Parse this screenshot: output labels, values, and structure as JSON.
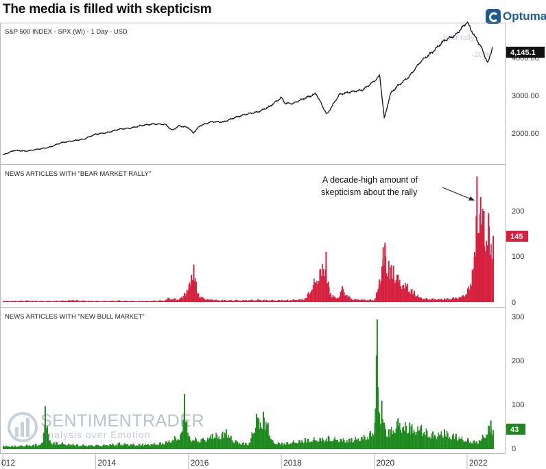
{
  "title": "The media is filled with skepticism",
  "brand": {
    "name": "Optuma",
    "logo_icon": "optuma-logo-icon"
  },
  "watermark": {
    "name": "SENTIMENTRADER",
    "tagline": "Analysis over Emotion",
    "icon": "sentimentrader-logo-icon"
  },
  "colors": {
    "price": "#111111",
    "bear": "#d6203f",
    "bull": "#1e8a1e",
    "grid": "#cccccc"
  },
  "chart_data": [
    {
      "type": "line",
      "panel_label": "S&P 500 INDEX - SPX (WI) - 1 Day - USD",
      "ticks": [
        "2000.00",
        "3000.00",
        "4000.00"
      ],
      "tick_values": [
        2000,
        3000,
        4000
      ],
      "last_value": 4145.1,
      "last_value_label": "4,145.1",
      "ghost_annotations": [
        "bear rally",
        "-20%"
      ],
      "series": [
        {
          "x": [
            2012.0,
            2012.25,
            2012.5,
            2012.75,
            2013.0,
            2013.25,
            2013.5,
            2013.75,
            2014.0,
            2014.25,
            2014.5,
            2014.75,
            2015.0,
            2015.25,
            2015.5,
            2015.65,
            2015.8,
            2016.0,
            2016.1,
            2016.25,
            2016.5,
            2016.75,
            2017.0,
            2017.25,
            2017.5,
            2017.75,
            2018.0,
            2018.08,
            2018.25,
            2018.5,
            2018.75,
            2018.98,
            2019.25,
            2019.5,
            2019.75,
            2020.0,
            2020.12,
            2020.22,
            2020.35,
            2020.5,
            2020.75,
            2021.0,
            2021.25,
            2021.5,
            2021.75,
            2022.0,
            2022.15,
            2022.3,
            2022.45,
            2022.55
          ],
          "y": [
            1280,
            1400,
            1380,
            1430,
            1480,
            1600,
            1650,
            1700,
            1830,
            1870,
            1960,
            1990,
            2060,
            2100,
            2090,
            1930,
            2050,
            2000,
            1860,
            2050,
            2160,
            2150,
            2270,
            2360,
            2420,
            2560,
            2800,
            2650,
            2640,
            2780,
            2900,
            2350,
            2880,
            2950,
            3000,
            3230,
            3380,
            2240,
            2900,
            3100,
            3350,
            3750,
            4000,
            4300,
            4450,
            4800,
            4450,
            4150,
            3700,
            4145
          ]
        }
      ]
    },
    {
      "type": "bar",
      "panel_label": "NEWS ARTICLES WITH \"BEAR MARKET RALLY\"",
      "ticks": [
        "0",
        "100",
        "200"
      ],
      "tick_values": [
        0,
        100,
        200
      ],
      "last_value": 145,
      "last_value_label": "145",
      "annotation_lines": [
        "A decade-high amount of",
        "skepticism about the rally"
      ],
      "series": [
        {
          "x": [
            2012.0,
            2012.5,
            2013.0,
            2013.5,
            2014.0,
            2014.5,
            2015.0,
            2015.5,
            2015.55,
            2015.8,
            2015.9,
            2016.0,
            2016.05,
            2016.1,
            2016.15,
            2016.2,
            2016.3,
            2016.5,
            2017.0,
            2017.5,
            2018.0,
            2018.5,
            2018.95,
            2019.0,
            2019.05,
            2019.1,
            2019.2,
            2019.3,
            2019.5,
            2020.0,
            2020.1,
            2020.18,
            2020.22,
            2020.3,
            2020.4,
            2020.5,
            2020.7,
            2020.85,
            2021.0,
            2021.5,
            2021.9,
            2022.0,
            2022.1,
            2022.15,
            2022.2,
            2022.28,
            2022.35,
            2022.45,
            2022.55
          ],
          "y": [
            3,
            4,
            3,
            5,
            3,
            4,
            3,
            5,
            10,
            8,
            20,
            40,
            60,
            82,
            45,
            20,
            10,
            6,
            5,
            6,
            5,
            8,
            110,
            45,
            20,
            15,
            10,
            35,
            8,
            6,
            50,
            120,
            130,
            90,
            80,
            60,
            40,
            25,
            10,
            8,
            15,
            30,
            70,
            110,
            275,
            230,
            200,
            195,
            145
          ]
        }
      ]
    },
    {
      "type": "bar",
      "panel_label": "NEWS ARTICLES WITH \"NEW BULL MARKET\"",
      "ticks": [
        "0",
        "100",
        "200",
        "300"
      ],
      "tick_values": [
        0,
        100,
        200,
        300
      ],
      "last_value": 43,
      "last_value_label": "43",
      "x_ticks": [
        "012",
        "2014",
        "2016",
        "2018",
        "2020",
        "2022"
      ],
      "series": [
        {
          "x": [
            2012.0,
            2012.5,
            2012.85,
            2012.9,
            2013.0,
            2013.5,
            2014.0,
            2014.5,
            2015.0,
            2015.5,
            2015.85,
            2015.9,
            2016.0,
            2016.3,
            2016.5,
            2016.8,
            2017.0,
            2017.3,
            2017.45,
            2017.5,
            2017.6,
            2017.7,
            2017.8,
            2018.0,
            2018.5,
            2019.0,
            2019.5,
            2019.9,
            2020.0,
            2020.05,
            2020.1,
            2020.15,
            2020.2,
            2020.3,
            2020.5,
            2020.75,
            2021.0,
            2021.25,
            2021.5,
            2021.75,
            2022.0,
            2022.25,
            2022.5,
            2022.55
          ],
          "y": [
            8,
            10,
            15,
            98,
            20,
            12,
            10,
            15,
            12,
            18,
            40,
            125,
            30,
            25,
            35,
            45,
            20,
            15,
            80,
            70,
            85,
            60,
            20,
            15,
            25,
            30,
            25,
            40,
            60,
            295,
            80,
            110,
            60,
            45,
            70,
            60,
            55,
            40,
            45,
            35,
            25,
            20,
            65,
            43
          ]
        }
      ]
    }
  ]
}
